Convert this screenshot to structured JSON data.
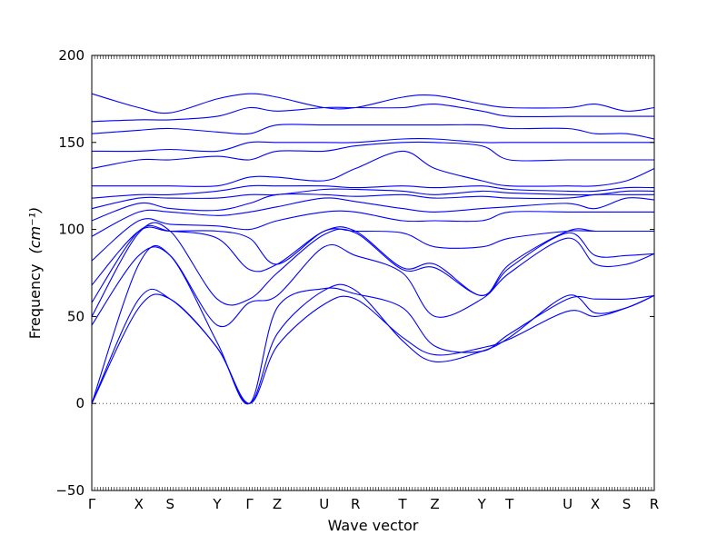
{
  "chart_data": {
    "type": "line",
    "title": "",
    "xlabel": "Wave vector",
    "ylabel": "Frequency",
    "ylabel_unit": "(cm⁻¹)",
    "ylim": [
      -50,
      200
    ],
    "yticks": [
      -50,
      0,
      50,
      100,
      150,
      200
    ],
    "zero_line": true,
    "line_color": "#0000ff",
    "path_points": [
      {
        "label": "Γ",
        "x": 0.0
      },
      {
        "label": "X",
        "x": 0.51
      },
      {
        "label": "S",
        "x": 0.85
      },
      {
        "label": "Y",
        "x": 1.36
      },
      {
        "label": "Γ",
        "x": 1.71
      },
      {
        "label": "Z",
        "x": 2.01
      },
      {
        "label": "U",
        "x": 2.52
      },
      {
        "label": "R",
        "x": 2.86
      },
      {
        "label": "T",
        "x": 3.37
      },
      {
        "label": "Z",
        "x": 3.72
      },
      {
        "label": "Y",
        "x": 4.23
      },
      {
        "label": "T",
        "x": 4.53
      },
      {
        "label": "U",
        "x": 5.16
      },
      {
        "label": "X",
        "x": 5.46
      },
      {
        "label": "S",
        "x": 5.8
      },
      {
        "label": "R",
        "x": 6.1
      }
    ],
    "series_values_at_points": [
      [
        0,
        55,
        60,
        32,
        0,
        33,
        57,
        60,
        38,
        28,
        32,
        37,
        53,
        50,
        55,
        62
      ],
      [
        0,
        60,
        60,
        32,
        0,
        40,
        65,
        65,
        36,
        24,
        30,
        38,
        62,
        52,
        55,
        62
      ],
      [
        0,
        80,
        85,
        35,
        0,
        55,
        66,
        63,
        55,
        33,
        30,
        40,
        60,
        60,
        60,
        62
      ],
      [
        45,
        85,
        85,
        45,
        58,
        62,
        90,
        85,
        75,
        50,
        60,
        75,
        95,
        80,
        80,
        86
      ],
      [
        50,
        98,
        99,
        60,
        60,
        75,
        97,
        98,
        77,
        78,
        62,
        78,
        98,
        85,
        85,
        86
      ],
      [
        58,
        99,
        99,
        95,
        77,
        80,
        99,
        99,
        78,
        80,
        62,
        80,
        99,
        99,
        99,
        99
      ],
      [
        68,
        99,
        99,
        99,
        95,
        80,
        99,
        99,
        98,
        90,
        90,
        95,
        99,
        99,
        99,
        99
      ],
      [
        82,
        105,
        103,
        102,
        100,
        105,
        110,
        110,
        105,
        105,
        105,
        110,
        110,
        110,
        110,
        110
      ],
      [
        96,
        110,
        110,
        108,
        110,
        113,
        118,
        116,
        112,
        110,
        112,
        113,
        115,
        112,
        118,
        117
      ],
      [
        105,
        115,
        112,
        111,
        115,
        120,
        120,
        119,
        120,
        118,
        119,
        118,
        118,
        120,
        120,
        120
      ],
      [
        112,
        118,
        118,
        118,
        120,
        120,
        123,
        123,
        122,
        120,
        122,
        121,
        120,
        120,
        122,
        122
      ],
      [
        118,
        120,
        120,
        122,
        125,
        125,
        125,
        124,
        125,
        124,
        125,
        123,
        122,
        122,
        124,
        124
      ],
      [
        125,
        125,
        125,
        125,
        130,
        130,
        128,
        135,
        145,
        135,
        128,
        125,
        125,
        125,
        128,
        135
      ],
      [
        135,
        140,
        140,
        142,
        140,
        145,
        145,
        148,
        150,
        150,
        148,
        140,
        140,
        140,
        140,
        140
      ],
      [
        145,
        145,
        146,
        145,
        150,
        150,
        150,
        150,
        152,
        152,
        150,
        150,
        150,
        150,
        150,
        150
      ],
      [
        155,
        157,
        158,
        156,
        155,
        160,
        160,
        160,
        160,
        160,
        160,
        158,
        158,
        155,
        155,
        152
      ],
      [
        162,
        163,
        163,
        165,
        170,
        168,
        170,
        170,
        170,
        172,
        168,
        165,
        165,
        165,
        165,
        165
      ],
      [
        178,
        170,
        167,
        175,
        178,
        176,
        170,
        170,
        176,
        177,
        172,
        170,
        170,
        172,
        168,
        170
      ]
    ]
  }
}
